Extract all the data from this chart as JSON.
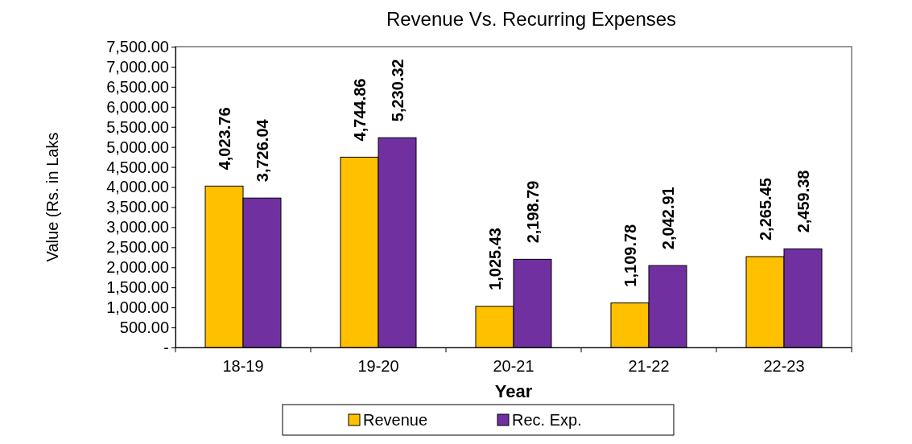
{
  "chart_data": {
    "type": "bar",
    "title": "Revenue Vs. Recurring Expenses",
    "xlabel": "Year",
    "ylabel": "Value (Rs. in Laks",
    "categories": [
      "18-19",
      "19-20",
      "20-21",
      "21-22",
      "22-23"
    ],
    "series": [
      {
        "name": "Revenue",
        "color": "#ffc000",
        "values": [
          4023.76,
          4744.86,
          1025.43,
          1109.78,
          2265.45
        ],
        "value_labels": [
          "4,023.76",
          "4,744.86",
          "1,025.43",
          "1,109.78",
          "2,265.45"
        ]
      },
      {
        "name": "Rec. Exp.",
        "color": "#7030a0",
        "values": [
          3726.04,
          5230.32,
          2198.79,
          2042.91,
          2459.38
        ],
        "value_labels": [
          "3,726.04",
          "5,230.32",
          "2,198.79",
          "2,042.91",
          "2,459.38"
        ]
      }
    ],
    "ylim": [
      0,
      7500
    ],
    "yticks": [
      {
        "value": 0,
        "label": "-"
      },
      {
        "value": 500,
        "label": "500.00"
      },
      {
        "value": 1000,
        "label": "1,000.00"
      },
      {
        "value": 1500,
        "label": "1,500.00"
      },
      {
        "value": 2000,
        "label": "2,000.00"
      },
      {
        "value": 2500,
        "label": "2,500.00"
      },
      {
        "value": 3000,
        "label": "3,000.00"
      },
      {
        "value": 3500,
        "label": "3,500.00"
      },
      {
        "value": 4000,
        "label": "4,000.00"
      },
      {
        "value": 4500,
        "label": "4,500.00"
      },
      {
        "value": 5000,
        "label": "5,000.00"
      },
      {
        "value": 5500,
        "label": "5,500.00"
      },
      {
        "value": 6000,
        "label": "6,000.00"
      },
      {
        "value": 6500,
        "label": "6,500.00"
      },
      {
        "value": 7000,
        "label": "7,000.00"
      },
      {
        "value": 7500,
        "label": "7,500.00"
      }
    ],
    "legend": "bottom",
    "grid": false
  }
}
